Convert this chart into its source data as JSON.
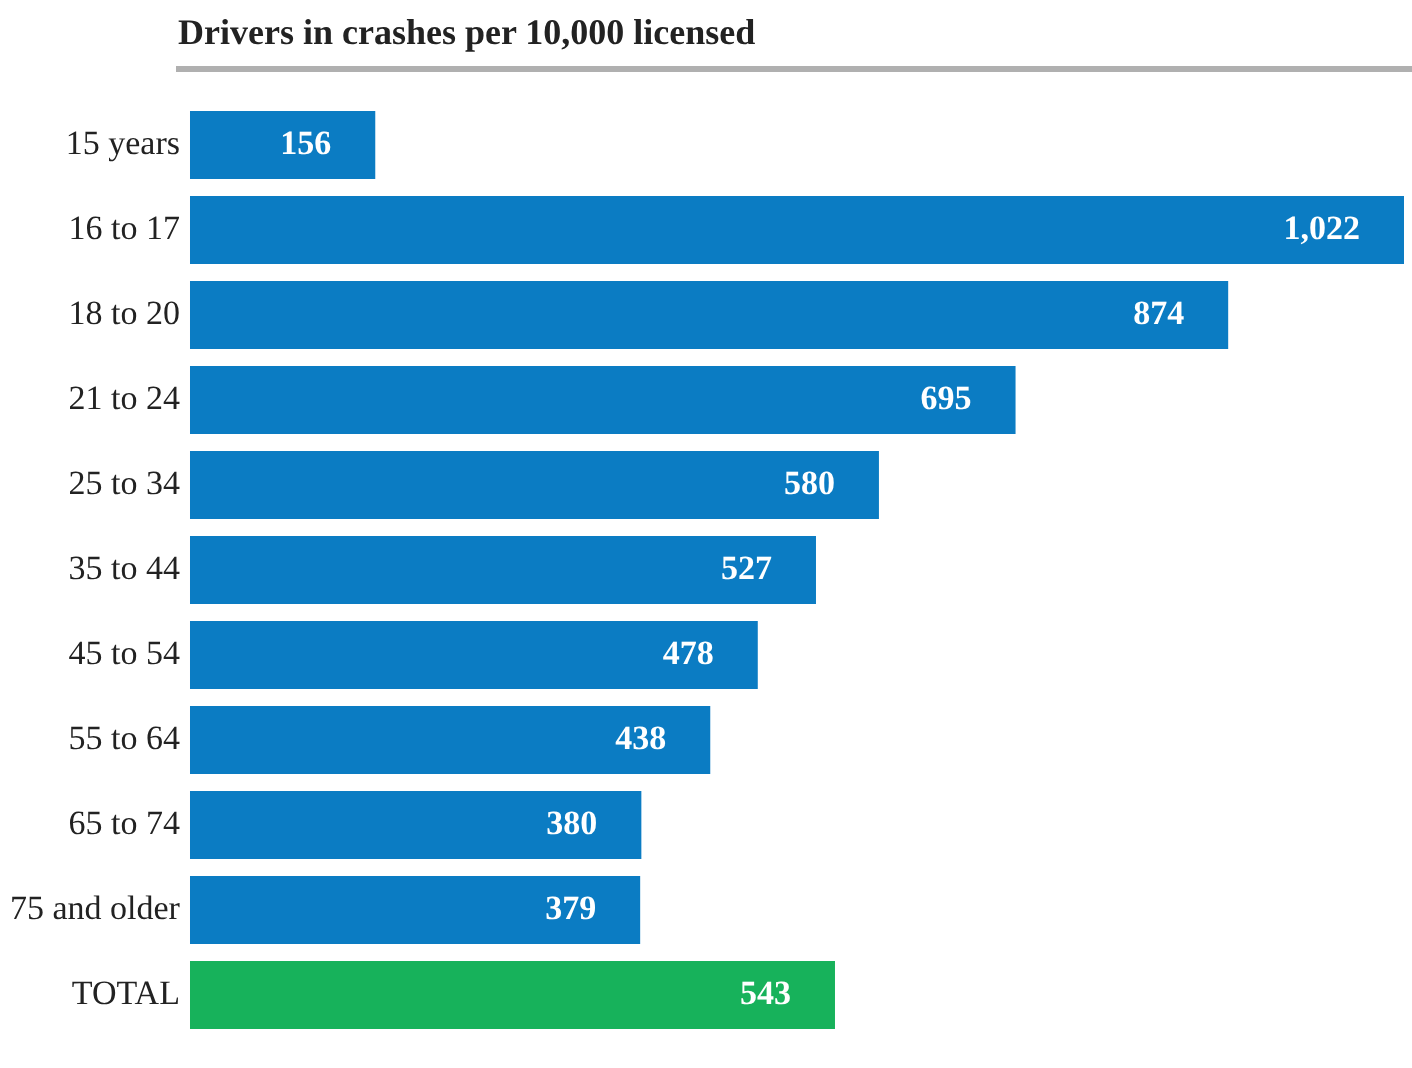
{
  "chart_data": {
    "type": "bar",
    "orientation": "horizontal",
    "title": "Drivers in crashes per 10,000 licensed",
    "categories": [
      "15 years",
      "16 to 17",
      "18 to 20",
      "21 to 24",
      "25 to 34",
      "35 to 44",
      "45 to 54",
      "55 to 64",
      "65 to 74",
      "75 and older",
      "TOTAL"
    ],
    "values": [
      156,
      1022,
      874,
      695,
      580,
      527,
      478,
      438,
      380,
      379,
      543
    ],
    "value_labels": [
      "156",
      "1,022",
      "874",
      "695",
      "580",
      "527",
      "478",
      "438",
      "380",
      "379",
      "543"
    ],
    "colors": [
      "#0b7cc3",
      "#0b7cc3",
      "#0b7cc3",
      "#0b7cc3",
      "#0b7cc3",
      "#0b7cc3",
      "#0b7cc3",
      "#0b7cc3",
      "#0b7cc3",
      "#0b7cc3",
      "#17b25b"
    ],
    "grid": false,
    "legend": false
  }
}
